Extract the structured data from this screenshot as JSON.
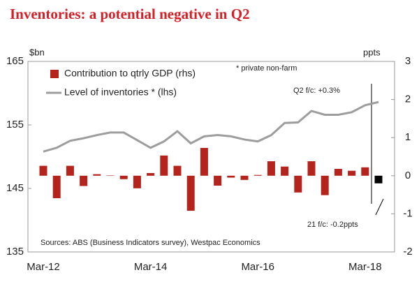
{
  "chart_data": {
    "type": "bar-line",
    "title": "Inventories: a potential negative in Q2",
    "y_label": "$bn",
    "y2_label": "ppts",
    "categories": [
      "Mar-12",
      null,
      null,
      null,
      null,
      null,
      null,
      null,
      "Mar-14",
      null,
      null,
      null,
      null,
      null,
      null,
      null,
      "Mar-16",
      null,
      null,
      null,
      null,
      null,
      null,
      null,
      "Mar-18",
      null
    ],
    "series": [
      {
        "name": "Contribution to qtrly GDP (rhs)",
        "type": "bar",
        "axis": "y2",
        "color": "#b5241c",
        "colors": [
          "#b5241c",
          "#b5241c",
          "#b5241c",
          "#b5241c",
          "#b5241c",
          "#b5241c",
          "#b5241c",
          "#b5241c",
          "#b5241c",
          "#b5241c",
          "#b5241c",
          "#b5241c",
          "#b5241c",
          "#b5241c",
          "#b5241c",
          "#b5241c",
          "#b5241c",
          "#b5241c",
          "#b5241c",
          "#b5241c",
          "#b5241c",
          "#b5241c",
          "#b5241c",
          "#b5241c",
          "#b5241c",
          "#000000"
        ],
        "values": [
          0.26,
          -0.59,
          0.26,
          -0.27,
          0.04,
          0.01,
          -0.09,
          -0.33,
          0.07,
          0.53,
          0.26,
          -0.92,
          0.73,
          -0.26,
          -0.05,
          -0.11,
          0.02,
          0.38,
          0.24,
          -0.44,
          0.38,
          -0.51,
          0.18,
          0.13,
          0.22,
          -0.2
        ]
      },
      {
        "name": "Level of inventories * (lhs)",
        "type": "line",
        "axis": "y",
        "color": "#9d9d9d",
        "values": [
          150.8,
          151.4,
          152.5,
          152.9,
          153.4,
          153.8,
          153.8,
          152.6,
          151.4,
          152.4,
          154.0,
          152.1,
          153.2,
          153.4,
          153.2,
          152.7,
          152.4,
          153.4,
          155.3,
          155.4,
          157.2,
          156.6,
          156.6,
          157.0,
          158.1,
          158.6
        ]
      }
    ],
    "ylim": [
      135,
      165
    ],
    "yticks": [
      135,
      145,
      155,
      165
    ],
    "y2lim": [
      -2,
      3
    ],
    "y2ticks": [
      -2,
      -1,
      0,
      1,
      2,
      3
    ],
    "annotations": [
      "* private non-farm",
      "Q2 f/c: +0.3%",
      "21 f/c: -0.2ppts"
    ],
    "source": "Sources: ABS (Business Indicators survey), Westpac Economics",
    "legend": "upper left",
    "grid": false
  }
}
